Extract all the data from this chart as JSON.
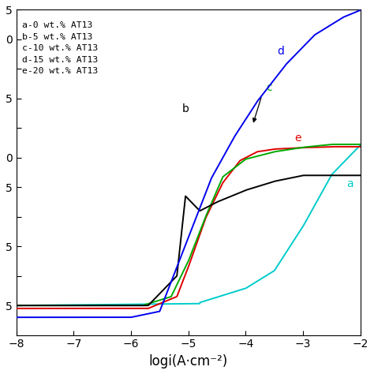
{
  "xlabel": "logi(A·cm⁻²)",
  "xlim": [
    -8,
    -2
  ],
  "ylim": [
    -600,
    500
  ],
  "xticks": [
    -8,
    -7,
    -6,
    -5,
    -4,
    -3,
    -2
  ],
  "ytick_positions": [
    -500,
    -400,
    -300,
    -200,
    -100,
    0,
    100,
    200,
    300,
    400,
    500
  ],
  "ytick_labels": [
    "5",
    "",
    "5",
    "",
    "5",
    "0",
    "",
    "5",
    "",
    "0",
    "5"
  ],
  "legend_lines": [
    "a-0 wt.% AT13",
    "b-5 wt.% AT13",
    "c-10 wt.% AT13",
    "d-15 wt.% AT13",
    "e-20 wt.% AT13"
  ],
  "colors": {
    "a": "#00CCCC",
    "b": "#000000",
    "c": "#00AA00",
    "d": "#0000EE",
    "e": "#DD0000"
  }
}
